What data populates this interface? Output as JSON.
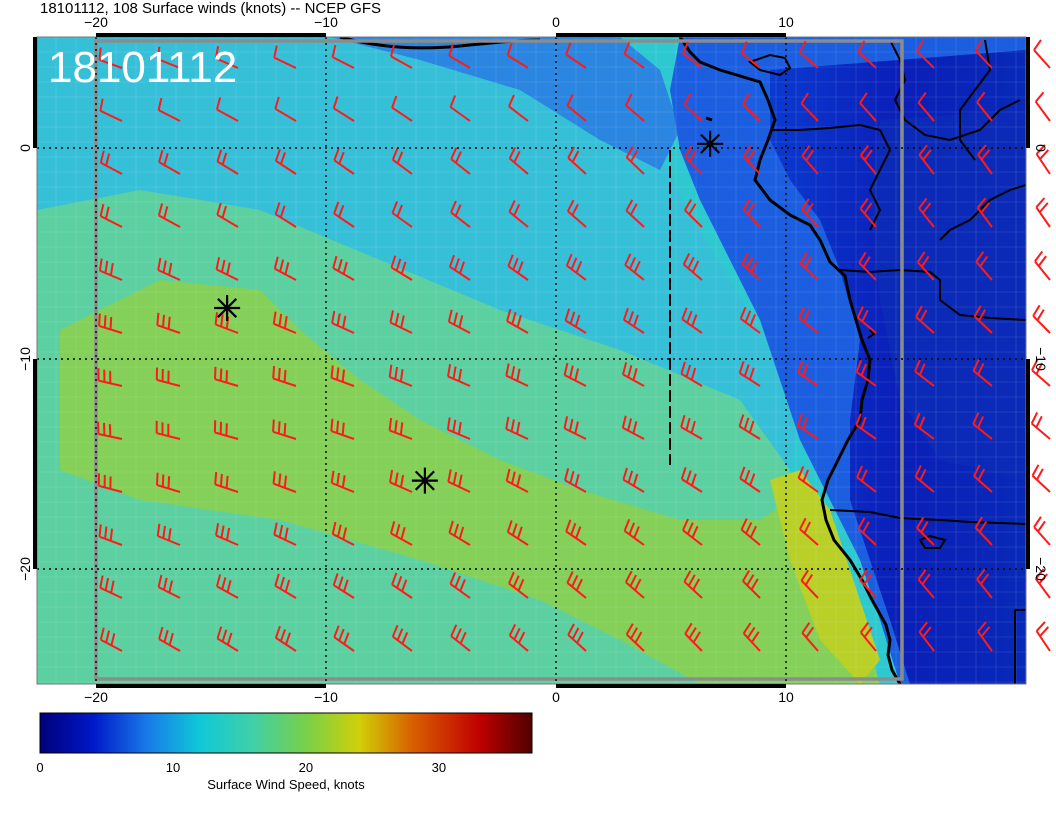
{
  "title": "18101112, 108 Surface winds (knots) -- NCEP GFS",
  "timestamp_label": "18101112",
  "axes": {
    "lon_ticks": [
      {
        "value": -20,
        "label": "−20"
      },
      {
        "value": -10,
        "label": "−10"
      },
      {
        "value": 0,
        "label": "0"
      },
      {
        "value": 10,
        "label": "10"
      }
    ],
    "lat_ticks": [
      {
        "value": 0,
        "label": "0"
      },
      {
        "value": -10,
        "label": "−10"
      },
      {
        "value": -20,
        "label": "−20"
      }
    ],
    "lon_range": [
      -22.5,
      20.3
    ],
    "lat_range": [
      -25.4,
      5.0
    ]
  },
  "colorbar": {
    "label": "Surface Wind Speed, knots",
    "range": [
      0,
      37
    ],
    "ticks": [
      {
        "value": 0,
        "label": "0"
      },
      {
        "value": 10,
        "label": "10"
      },
      {
        "value": 20,
        "label": "20"
      },
      {
        "value": 30,
        "label": "30"
      }
    ],
    "stops": [
      {
        "value": 0,
        "color": "#00007a"
      },
      {
        "value": 4,
        "color": "#0018c8"
      },
      {
        "value": 8,
        "color": "#1878e8"
      },
      {
        "value": 12,
        "color": "#10c8d8"
      },
      {
        "value": 16,
        "color": "#40d0a8"
      },
      {
        "value": 20,
        "color": "#78d048"
      },
      {
        "value": 24,
        "color": "#d0d008"
      },
      {
        "value": 28,
        "color": "#d86000"
      },
      {
        "value": 33,
        "color": "#c00000"
      },
      {
        "value": 37,
        "color": "#500000"
      }
    ]
  },
  "markers": [
    {
      "symbol": "asterisk",
      "lon": -14.3,
      "lat": -7.6
    },
    {
      "symbol": "asterisk",
      "lon": -5.7,
      "lat": -15.8
    },
    {
      "symbol": "asterisk",
      "lon": 6.7,
      "lat": 0.2
    }
  ],
  "colors": {
    "wind_barb": "#ff1a1a",
    "coastline": "#000000",
    "grid": "#000000",
    "domain_box": "#8c8c8c",
    "stamp_text": "#ffffff"
  }
}
